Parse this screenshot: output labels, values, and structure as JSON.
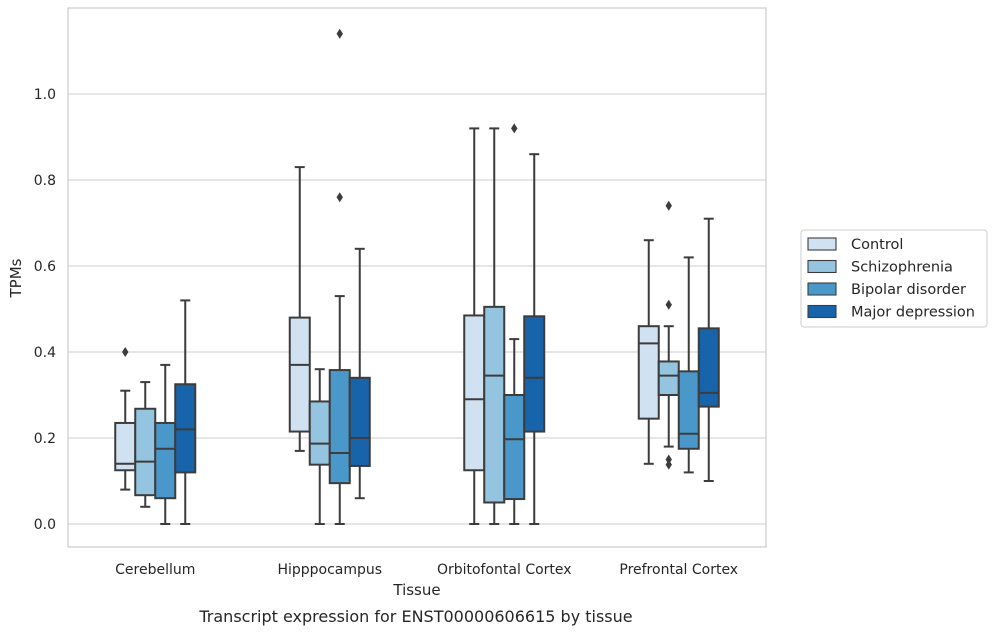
{
  "caption": "Transcript expression for ENST00000606615 by tissue",
  "chart_data": {
    "type": "box",
    "title": "",
    "xlabel": "Tissue",
    "ylabel": "TPMs",
    "ylim": [
      -0.055,
      1.2
    ],
    "yticks": [
      0.0,
      0.2,
      0.4,
      0.6,
      0.8,
      1.0
    ],
    "ytick_labels": [
      "0.0",
      "0.2",
      "0.4",
      "0.6",
      "0.8",
      "1.0"
    ],
    "grid": "horizontal",
    "legend_position": "right",
    "categories": [
      "Cerebellum",
      "Hipppocampus",
      "Orbitofontal Cortex",
      "Prefrontal Cortex"
    ],
    "series": [
      {
        "name": "Control",
        "color": "#d0e1f2",
        "boxes": [
          {
            "whislo": 0.08,
            "q1": 0.125,
            "med": 0.14,
            "q3": 0.235,
            "whishi": 0.31,
            "fliers": [
              0.4
            ]
          },
          {
            "whislo": 0.17,
            "q1": 0.215,
            "med": 0.37,
            "q3": 0.48,
            "whishi": 0.83,
            "fliers": []
          },
          {
            "whislo": 0.0,
            "q1": 0.125,
            "med": 0.29,
            "q3": 0.485,
            "whishi": 0.92,
            "fliers": []
          },
          {
            "whislo": 0.14,
            "q1": 0.245,
            "med": 0.42,
            "q3": 0.46,
            "whishi": 0.66,
            "fliers": []
          }
        ]
      },
      {
        "name": "Schizophrenia",
        "color": "#94c4df",
        "boxes": [
          {
            "whislo": 0.04,
            "q1": 0.067,
            "med": 0.145,
            "q3": 0.268,
            "whishi": 0.33,
            "fliers": []
          },
          {
            "whislo": 0.0,
            "q1": 0.138,
            "med": 0.187,
            "q3": 0.285,
            "whishi": 0.36,
            "fliers": []
          },
          {
            "whislo": 0.0,
            "q1": 0.05,
            "med": 0.345,
            "q3": 0.505,
            "whishi": 0.92,
            "fliers": []
          },
          {
            "whislo": 0.18,
            "q1": 0.3,
            "med": 0.345,
            "q3": 0.378,
            "whishi": 0.46,
            "fliers": [
              0.74,
              0.51,
              0.15,
              0.138
            ]
          }
        ]
      },
      {
        "name": "Bipolar disorder",
        "color": "#4a98c9",
        "boxes": [
          {
            "whislo": 0.0,
            "q1": 0.06,
            "med": 0.175,
            "q3": 0.235,
            "whishi": 0.37,
            "fliers": []
          },
          {
            "whislo": 0.0,
            "q1": 0.095,
            "med": 0.165,
            "q3": 0.358,
            "whishi": 0.53,
            "fliers": [
              1.14,
              0.76
            ]
          },
          {
            "whislo": 0.0,
            "q1": 0.058,
            "med": 0.197,
            "q3": 0.3,
            "whishi": 0.43,
            "fliers": [
              0.92
            ]
          },
          {
            "whislo": 0.12,
            "q1": 0.175,
            "med": 0.21,
            "q3": 0.355,
            "whishi": 0.62,
            "fliers": []
          }
        ]
      },
      {
        "name": "Major depression",
        "color": "#1764ab",
        "boxes": [
          {
            "whislo": 0.0,
            "q1": 0.12,
            "med": 0.22,
            "q3": 0.325,
            "whishi": 0.52,
            "fliers": []
          },
          {
            "whislo": 0.06,
            "q1": 0.135,
            "med": 0.2,
            "q3": 0.34,
            "whishi": 0.64,
            "fliers": []
          },
          {
            "whislo": 0.0,
            "q1": 0.215,
            "med": 0.34,
            "q3": 0.483,
            "whishi": 0.86,
            "fliers": []
          },
          {
            "whislo": 0.1,
            "q1": 0.273,
            "med": 0.305,
            "q3": 0.455,
            "whishi": 0.71,
            "fliers": []
          }
        ]
      }
    ]
  }
}
